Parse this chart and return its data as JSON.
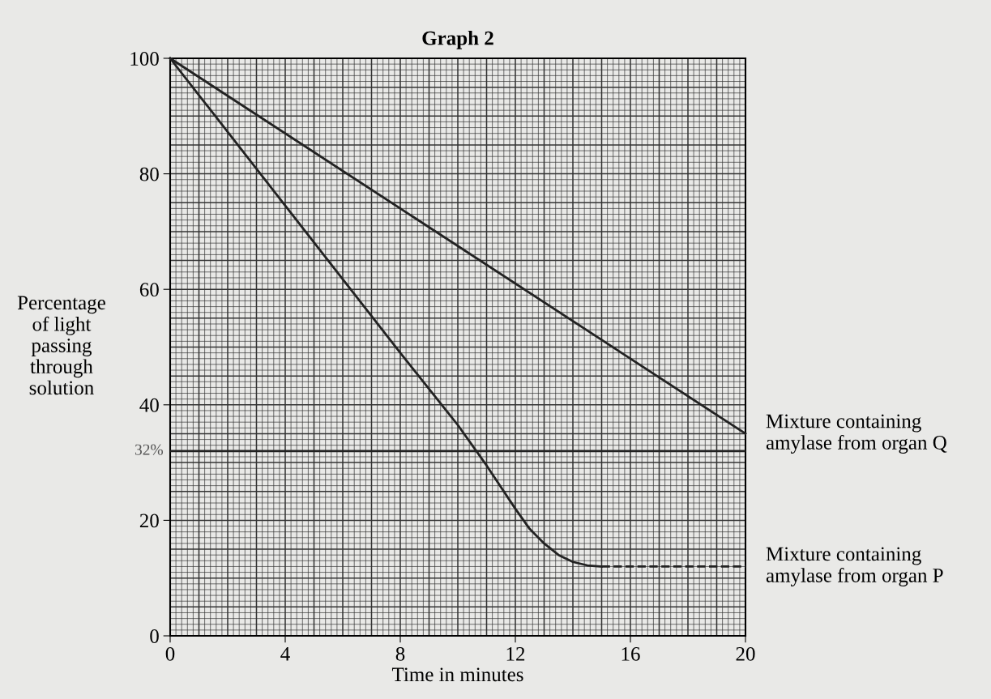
{
  "chart_data": {
    "type": "line",
    "title": "Graph 2",
    "xlabel": "Time in minutes",
    "ylabel": "Percentage\nof light\npassing\nthrough\nsolution",
    "series": [
      {
        "name": "Mixture containing\namylase from organ Q",
        "color": "#222222",
        "x": [
          0,
          20
        ],
        "values": [
          100,
          35
        ],
        "line_style": "solid"
      },
      {
        "color": "#222222",
        "x": [
          0,
          4,
          8,
          10,
          11,
          12,
          12.5,
          13,
          13.5,
          14,
          14.5,
          15
        ],
        "values": [
          100,
          74.5,
          49,
          36.5,
          29.5,
          22,
          18.5,
          16,
          14,
          12.8,
          12.2,
          12
        ],
        "line_style": "solid"
      },
      {
        "name": "Mixture containing\namylase from organ P",
        "color": "#222222",
        "x": [
          15,
          20
        ],
        "values": [
          12,
          12
        ],
        "line_style": "dashed"
      }
    ],
    "xlim": [
      0,
      20
    ],
    "ylim": [
      0,
      100
    ],
    "xticks": [
      0,
      4,
      8,
      12,
      16,
      20
    ],
    "yticks": [
      0,
      20,
      40,
      60,
      80,
      100
    ],
    "grid": true,
    "marker": "none",
    "ref_lines": [
      {
        "axis": "y",
        "value": 32,
        "label": "32%",
        "color": "#222222",
        "line_style": "solid"
      }
    ]
  }
}
